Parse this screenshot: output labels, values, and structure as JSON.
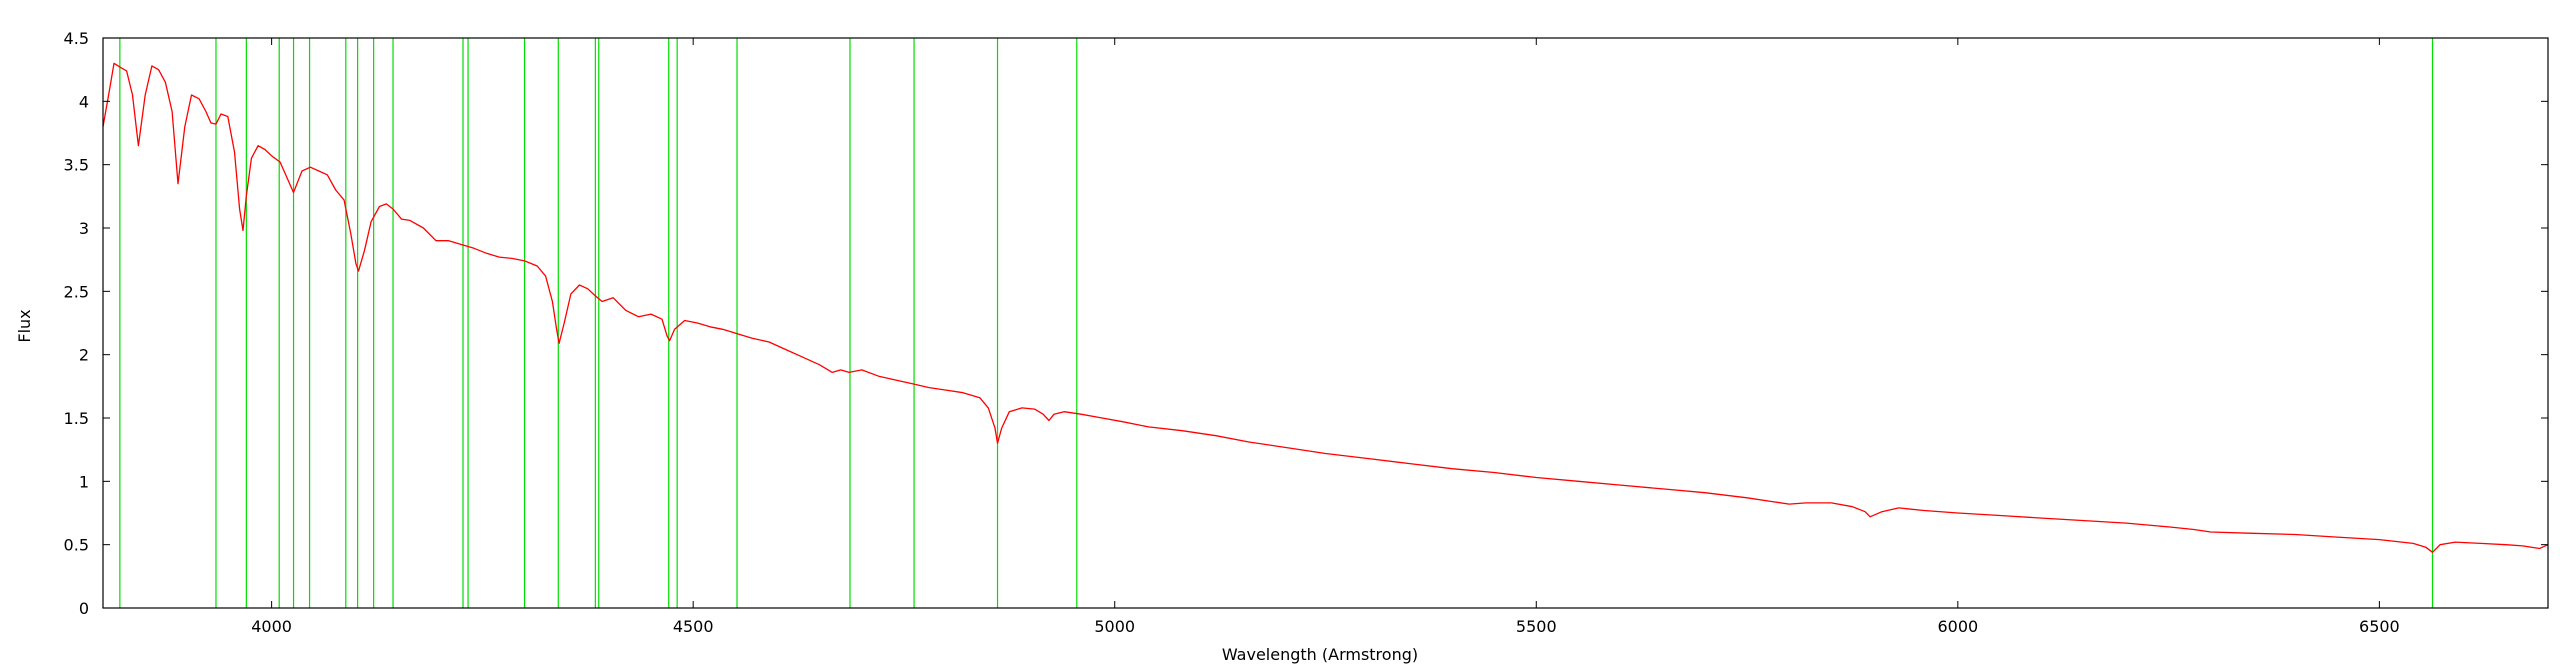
{
  "chart_data": {
    "type": "line",
    "title": "",
    "xlabel": "Wavelength (Armstrong)",
    "ylabel": "Flux",
    "xlim": [
      3800,
      6700
    ],
    "ylim": [
      0,
      4.5
    ],
    "x_ticks": [
      4000,
      4500,
      5000,
      5500,
      6000,
      6500
    ],
    "y_ticks": [
      0,
      0.5,
      1,
      1.5,
      2,
      2.5,
      3,
      3.5,
      4,
      4.5
    ],
    "x_tick_labels": [
      "4000",
      "4500",
      "5000",
      "5500",
      "6000",
      "6500"
    ],
    "y_tick_labels": [
      "0",
      "0.5",
      "1",
      "1.5",
      "2",
      "2.5",
      "3",
      "3.5",
      "4",
      "4.5"
    ],
    "grid": false,
    "legend": "none",
    "line_color": "#ff0000",
    "marker_color": "#00dd00",
    "reference_lines_x": [
      3820,
      3934,
      3970,
      4009,
      4026,
      4045,
      4088,
      4102,
      4121,
      4144,
      4227,
      4233,
      4300,
      4340,
      4384,
      4388,
      4471,
      4481,
      4552,
      4686,
      4762,
      4861,
      4955,
      6563
    ],
    "series": [
      {
        "x": [
          3800,
          3808,
          3813,
          3820,
          3828,
          3835,
          3842,
          3850,
          3858,
          3866,
          3874,
          3882,
          3889,
          3897,
          3905,
          3914,
          3922,
          3928,
          3934,
          3940,
          3948,
          3956,
          3962,
          3966,
          3970,
          3976,
          3984,
          3992,
          4000,
          4010,
          4018,
          4026,
          4036,
          4046,
          4056,
          4066,
          4076,
          4086,
          4094,
          4100,
          4103,
          4110,
          4118,
          4128,
          4136,
          4144,
          4154,
          4164,
          4180,
          4195,
          4210,
          4225,
          4240,
          4255,
          4270,
          4285,
          4300,
          4315,
          4325,
          4333,
          4338,
          4341,
          4347,
          4355,
          4365,
          4375,
          4383,
          4392,
          4405,
          4420,
          4435,
          4450,
          4463,
          4469,
          4472,
          4478,
          4490,
          4505,
          4520,
          4535,
          4550,
          4570,
          4590,
          4610,
          4630,
          4650,
          4665,
          4675,
          4685,
          4700,
          4720,
          4740,
          4760,
          4780,
          4800,
          4820,
          4840,
          4850,
          4858,
          4861,
          4866,
          4875,
          4890,
          4905,
          4915,
          4922,
          4928,
          4940,
          4960,
          4985,
          5010,
          5040,
          5080,
          5120,
          5160,
          5200,
          5250,
          5300,
          5350,
          5400,
          5450,
          5500,
          5550,
          5600,
          5650,
          5700,
          5750,
          5780,
          5800,
          5820,
          5850,
          5875,
          5890,
          5896,
          5910,
          5930,
          5960,
          6000,
          6050,
          6100,
          6150,
          6200,
          6250,
          6280,
          6300,
          6350,
          6400,
          6450,
          6500,
          6540,
          6555,
          6563,
          6572,
          6590,
          6620,
          6650,
          6670,
          6690,
          6700
        ],
        "y": [
          3.8,
          4.1,
          4.3,
          4.27,
          4.24,
          4.05,
          3.65,
          4.05,
          4.28,
          4.25,
          4.15,
          3.92,
          3.35,
          3.8,
          4.05,
          4.02,
          3.92,
          3.83,
          3.82,
          3.9,
          3.88,
          3.6,
          3.15,
          2.98,
          3.25,
          3.55,
          3.65,
          3.62,
          3.57,
          3.52,
          3.4,
          3.28,
          3.45,
          3.48,
          3.45,
          3.42,
          3.3,
          3.22,
          2.95,
          2.72,
          2.66,
          2.82,
          3.05,
          3.17,
          3.19,
          3.15,
          3.07,
          3.06,
          3.0,
          2.9,
          2.9,
          2.87,
          2.84,
          2.8,
          2.77,
          2.76,
          2.74,
          2.7,
          2.62,
          2.42,
          2.2,
          2.09,
          2.25,
          2.48,
          2.55,
          2.52,
          2.47,
          2.42,
          2.45,
          2.35,
          2.3,
          2.32,
          2.28,
          2.15,
          2.11,
          2.2,
          2.27,
          2.25,
          2.22,
          2.2,
          2.17,
          2.13,
          2.1,
          2.04,
          1.98,
          1.92,
          1.86,
          1.88,
          1.86,
          1.88,
          1.83,
          1.8,
          1.77,
          1.74,
          1.72,
          1.7,
          1.66,
          1.58,
          1.42,
          1.3,
          1.42,
          1.55,
          1.58,
          1.57,
          1.53,
          1.48,
          1.53,
          1.55,
          1.53,
          1.5,
          1.47,
          1.43,
          1.4,
          1.36,
          1.31,
          1.27,
          1.22,
          1.18,
          1.14,
          1.1,
          1.07,
          1.03,
          1.0,
          0.97,
          0.94,
          0.91,
          0.87,
          0.84,
          0.82,
          0.83,
          0.83,
          0.8,
          0.76,
          0.72,
          0.76,
          0.79,
          0.77,
          0.75,
          0.73,
          0.71,
          0.69,
          0.67,
          0.64,
          0.62,
          0.6,
          0.59,
          0.58,
          0.56,
          0.54,
          0.51,
          0.48,
          0.44,
          0.5,
          0.52,
          0.51,
          0.5,
          0.49,
          0.47,
          0.5
        ]
      }
    ]
  }
}
